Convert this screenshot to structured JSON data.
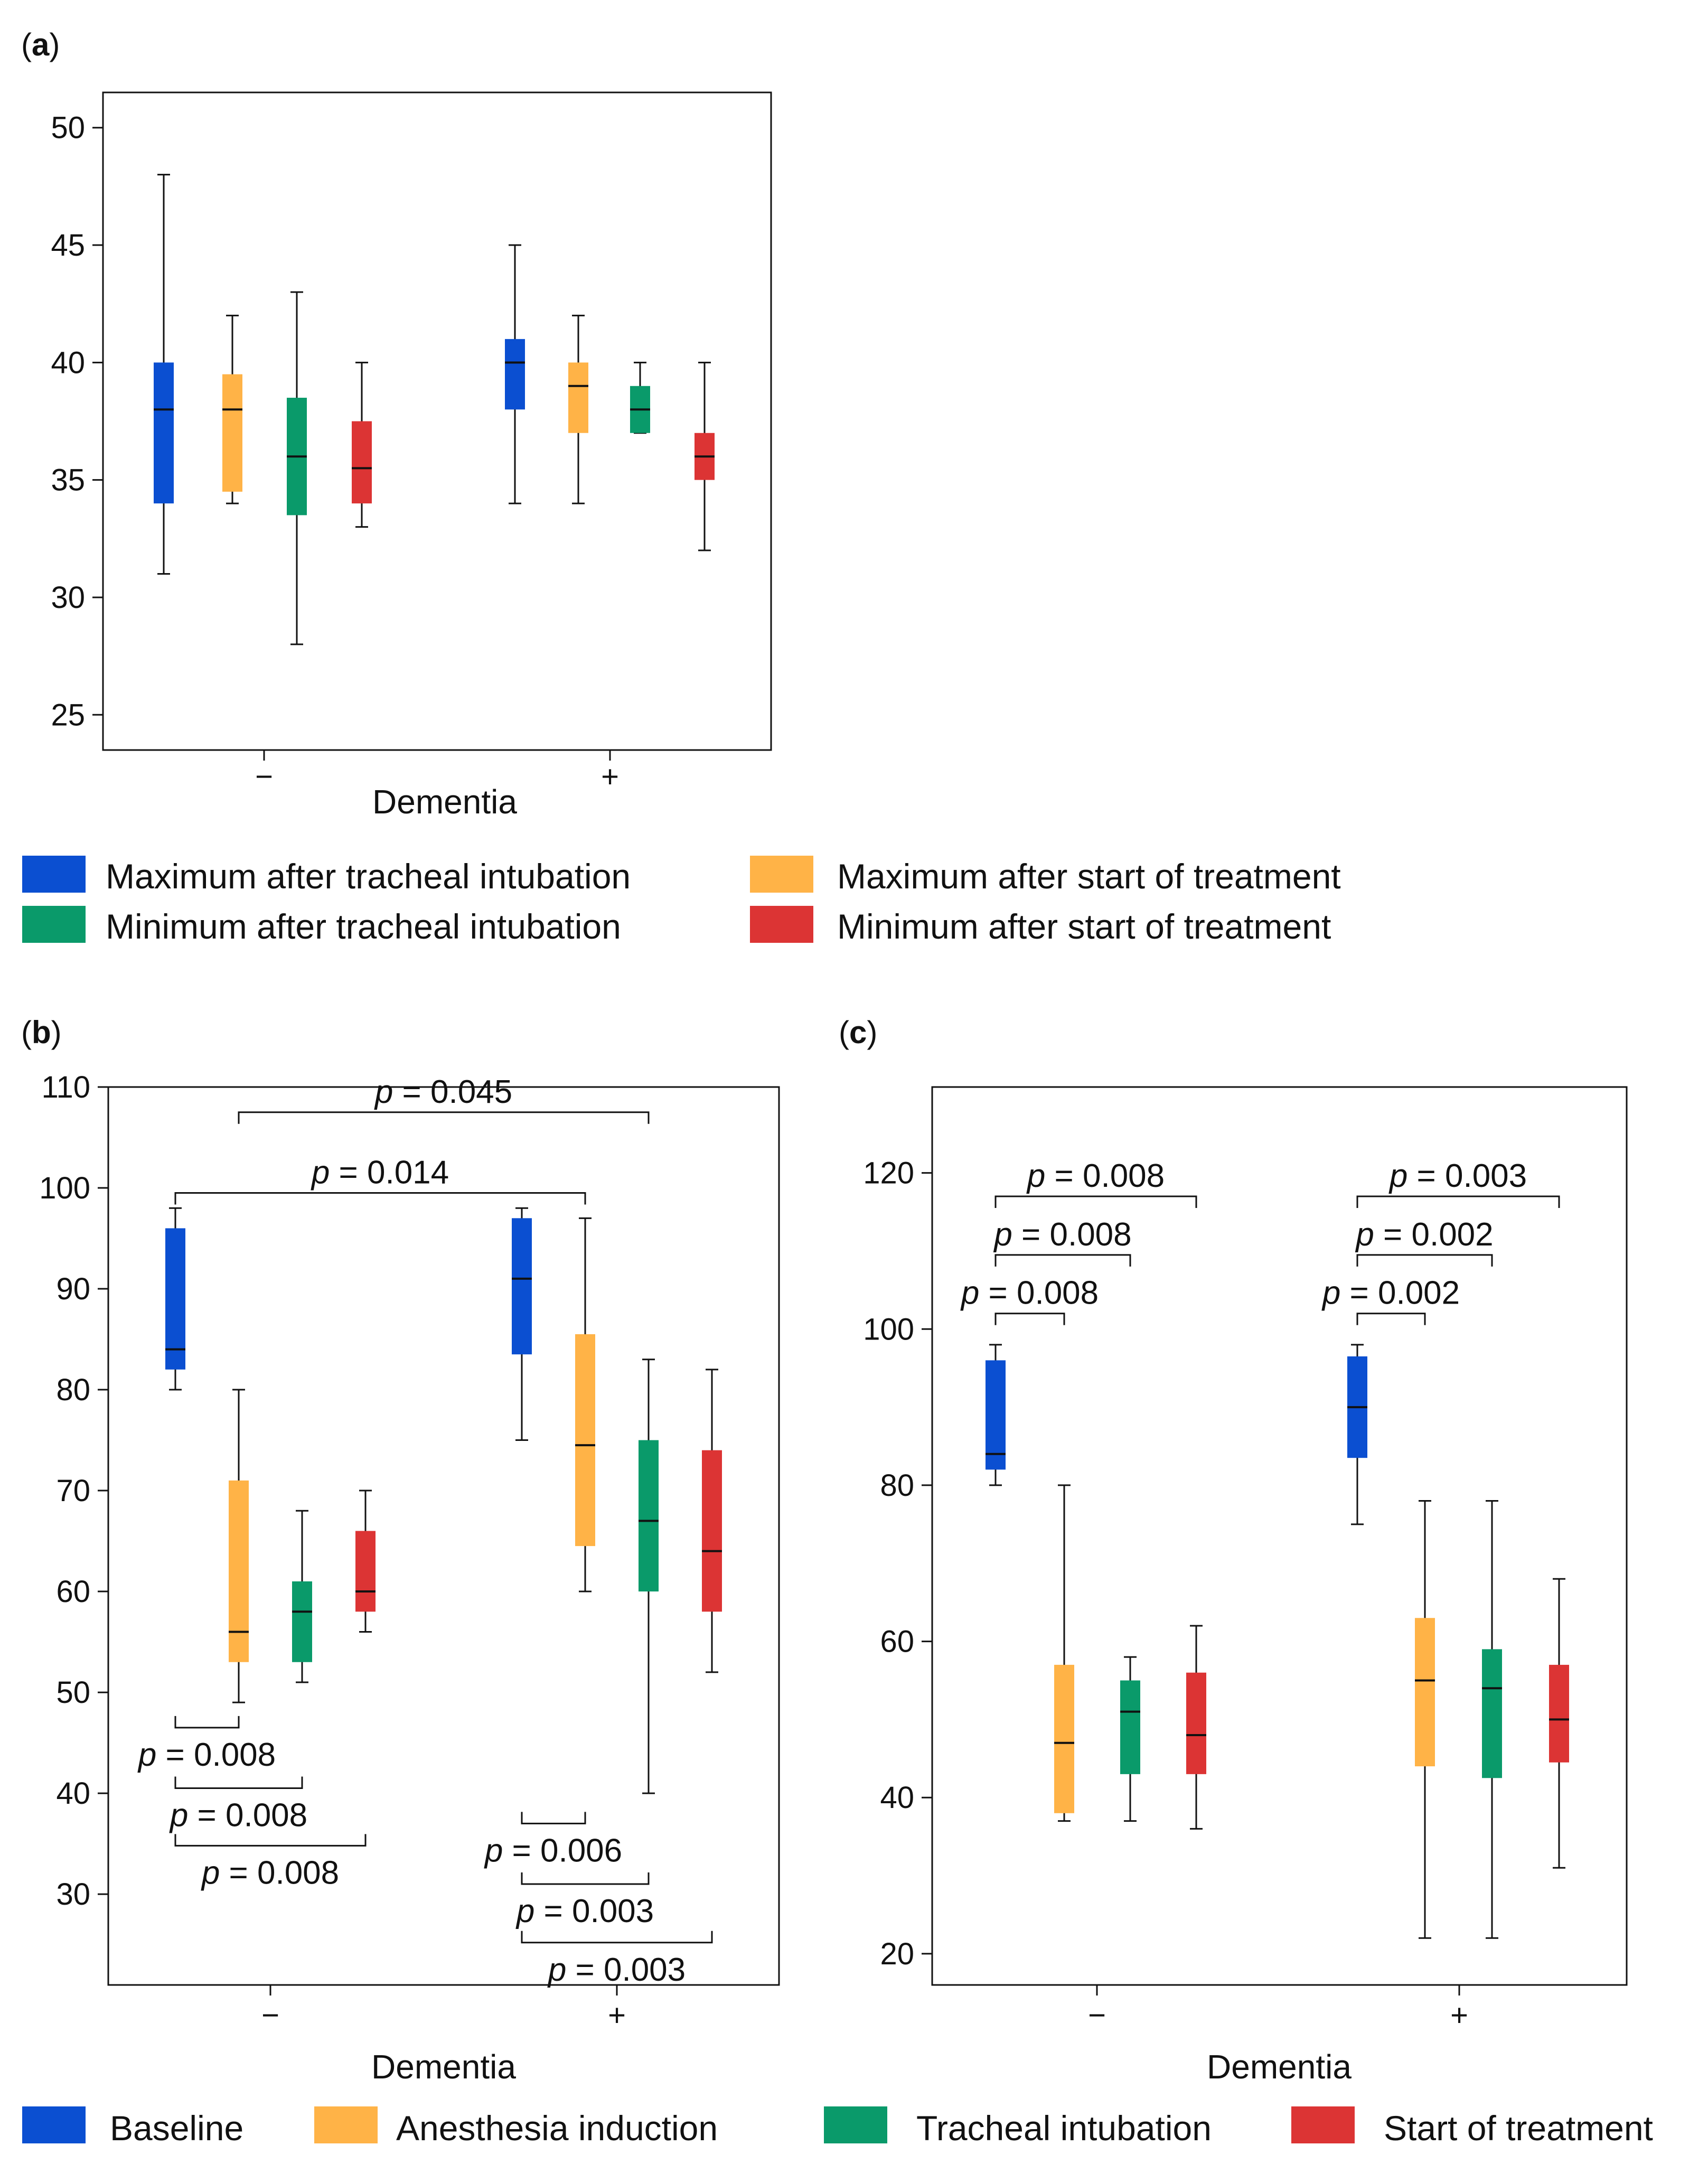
{
  "colors": {
    "blue": "#0b4fd1",
    "orange": "#ffb347",
    "green": "#0a9a6a",
    "red": "#dc3434"
  },
  "panel_a": {
    "label": "a",
    "xlabel": "Dementia",
    "legend": [
      {
        "label": "Maximum after tracheal intubation",
        "color": "#0b4fd1"
      },
      {
        "label": "Maximum after start of treatment",
        "color": "#ffb347"
      },
      {
        "label": "Minimum after tracheal intubation",
        "color": "#0a9a6a"
      },
      {
        "label": "Minimum after start of treatment",
        "color": "#dc3434"
      }
    ]
  },
  "panel_b": {
    "label": "b",
    "xlabel": "Dementia"
  },
  "panel_c": {
    "label": "c",
    "xlabel": "Dementia"
  },
  "legend_bc": [
    {
      "label": "Baseline",
      "color": "#0b4fd1"
    },
    {
      "label": "Anesthesia induction",
      "color": "#ffb347"
    },
    {
      "label": "Tracheal intubation",
      "color": "#0a9a6a"
    },
    {
      "label": "Start of treatment",
      "color": "#dc3434"
    }
  ],
  "chart_data": [
    {
      "panel": "a",
      "type": "box",
      "xlabel": "Dementia",
      "categories": [
        "−",
        "+"
      ],
      "ylim": [
        23.5,
        51.5
      ],
      "yticks": [
        25,
        30,
        35,
        40,
        45,
        50
      ],
      "series": [
        {
          "name": "Maximum after tracheal intubation",
          "color": "#0b4fd1",
          "boxes": [
            {
              "min": 31,
              "q1": 34,
              "median": 38,
              "q3": 40,
              "max": 48
            },
            {
              "min": 34,
              "q1": 38,
              "median": 40,
              "q3": 41,
              "max": 45
            }
          ]
        },
        {
          "name": "Maximum after start of treatment",
          "color": "#ffb347",
          "boxes": [
            {
              "min": 34,
              "q1": 34.5,
              "median": 38,
              "q3": 39.5,
              "max": 42
            },
            {
              "min": 34,
              "q1": 37,
              "median": 39,
              "q3": 40,
              "max": 42
            }
          ]
        },
        {
          "name": "Minimum after tracheal intubation",
          "color": "#0a9a6a",
          "boxes": [
            {
              "min": 28,
              "q1": 33.5,
              "median": 36,
              "q3": 38.5,
              "max": 43
            },
            {
              "min": 37,
              "q1": 37,
              "median": 38,
              "q3": 39,
              "max": 40
            }
          ]
        },
        {
          "name": "Minimum after start of treatment",
          "color": "#dc3434",
          "boxes": [
            {
              "min": 33,
              "q1": 34,
              "median": 35.5,
              "q3": 37.5,
              "max": 40
            },
            {
              "min": 32,
              "q1": 35,
              "median": 36,
              "q3": 37,
              "max": 40
            }
          ]
        }
      ],
      "annotations": []
    },
    {
      "panel": "b",
      "type": "box",
      "xlabel": "Dementia",
      "categories": [
        "−",
        "+"
      ],
      "ylim": [
        21,
        110
      ],
      "yticks": [
        30,
        40,
        50,
        60,
        70,
        80,
        90,
        100,
        110
      ],
      "series": [
        {
          "name": "Baseline",
          "color": "#0b4fd1",
          "boxes": [
            {
              "min": 80,
              "q1": 82,
              "median": 84,
              "q3": 96,
              "max": 98
            },
            {
              "min": 75,
              "q1": 83.5,
              "median": 91,
              "q3": 97,
              "max": 98
            }
          ]
        },
        {
          "name": "Anesthesia induction",
          "color": "#ffb347",
          "boxes": [
            {
              "min": 49,
              "q1": 53,
              "median": 56,
              "q3": 71,
              "max": 80
            },
            {
              "min": 60,
              "q1": 64.5,
              "median": 74.5,
              "q3": 85.5,
              "max": 97
            }
          ]
        },
        {
          "name": "Tracheal intubation",
          "color": "#0a9a6a",
          "boxes": [
            {
              "min": 51,
              "q1": 53,
              "median": 58,
              "q3": 61,
              "max": 68
            },
            {
              "min": 40,
              "q1": 60,
              "median": 67,
              "q3": 75,
              "max": 83
            }
          ]
        },
        {
          "name": "Start of treatment",
          "color": "#dc3434",
          "boxes": [
            {
              "min": 56,
              "q1": 58,
              "median": 60,
              "q3": 66,
              "max": 70
            },
            {
              "min": 52,
              "q1": 58,
              "median": 64,
              "q3": 74,
              "max": 82
            }
          ]
        }
      ],
      "annotations": [
        {
          "text": "p = 0.045",
          "from": [
            0,
            1
          ],
          "to": [
            1,
            2
          ],
          "y": 107.5,
          "dir": "down"
        },
        {
          "text": "p = 0.014",
          "from": [
            0,
            0
          ],
          "to": [
            1,
            1
          ],
          "y": 99.5,
          "dir": "down"
        },
        {
          "text": "p = 0.008",
          "from": [
            0,
            0
          ],
          "to": [
            0,
            1
          ],
          "y": 46.5,
          "dir": "up"
        },
        {
          "text": "p = 0.008",
          "from": [
            0,
            0
          ],
          "to": [
            0,
            2
          ],
          "y": 40.5,
          "dir": "up"
        },
        {
          "text": "p = 0.008",
          "from": [
            0,
            0
          ],
          "to": [
            0,
            3
          ],
          "y": 34.8,
          "dir": "up"
        },
        {
          "text": "p = 0.006",
          "from": [
            1,
            0
          ],
          "to": [
            1,
            1
          ],
          "y": 37,
          "dir": "up"
        },
        {
          "text": "p = 0.003",
          "from": [
            1,
            0
          ],
          "to": [
            1,
            2
          ],
          "y": 31,
          "dir": "up"
        },
        {
          "text": "p = 0.003",
          "from": [
            1,
            0
          ],
          "to": [
            1,
            3
          ],
          "y": 25.2,
          "dir": "up"
        }
      ]
    },
    {
      "panel": "c",
      "type": "box",
      "xlabel": "Dementia",
      "categories": [
        "−",
        "+"
      ],
      "ylim": [
        16,
        131
      ],
      "yticks": [
        20,
        40,
        60,
        80,
        100,
        120
      ],
      "series": [
        {
          "name": "Baseline",
          "color": "#0b4fd1",
          "boxes": [
            {
              "min": 80,
              "q1": 82,
              "median": 84,
              "q3": 96,
              "max": 98
            },
            {
              "min": 75,
              "q1": 83.5,
              "median": 90,
              "q3": 96.5,
              "max": 98
            }
          ]
        },
        {
          "name": "Anesthesia induction",
          "color": "#ffb347",
          "boxes": [
            {
              "min": 37,
              "q1": 38,
              "median": 47,
              "q3": 57,
              "max": 80
            },
            {
              "min": 22,
              "q1": 44,
              "median": 55,
              "q3": 63,
              "max": 78
            }
          ]
        },
        {
          "name": "Tracheal intubation",
          "color": "#0a9a6a",
          "boxes": [
            {
              "min": 37,
              "q1": 43,
              "median": 51,
              "q3": 55,
              "max": 58
            },
            {
              "min": 22,
              "q1": 42.5,
              "median": 54,
              "q3": 59,
              "max": 78
            }
          ]
        },
        {
          "name": "Start of treatment",
          "color": "#dc3434",
          "boxes": [
            {
              "min": 36,
              "q1": 43,
              "median": 48,
              "q3": 56,
              "max": 62
            },
            {
              "min": 31,
              "q1": 44.5,
              "median": 50,
              "q3": 57,
              "max": 68
            }
          ]
        }
      ],
      "annotations": [
        {
          "text": "p = 0.008",
          "from": [
            0,
            0
          ],
          "to": [
            0,
            3
          ],
          "y": 117,
          "dir": "down"
        },
        {
          "text": "p = 0.008",
          "from": [
            0,
            0
          ],
          "to": [
            0,
            2
          ],
          "y": 109.5,
          "dir": "down"
        },
        {
          "text": "p = 0.008",
          "from": [
            0,
            0
          ],
          "to": [
            0,
            1
          ],
          "y": 102,
          "dir": "down"
        },
        {
          "text": "p = 0.003",
          "from": [
            1,
            0
          ],
          "to": [
            1,
            3
          ],
          "y": 117,
          "dir": "down"
        },
        {
          "text": "p = 0.002",
          "from": [
            1,
            0
          ],
          "to": [
            1,
            2
          ],
          "y": 109.5,
          "dir": "down"
        },
        {
          "text": "p = 0.002",
          "from": [
            1,
            0
          ],
          "to": [
            1,
            1
          ],
          "y": 102,
          "dir": "down"
        }
      ]
    }
  ]
}
